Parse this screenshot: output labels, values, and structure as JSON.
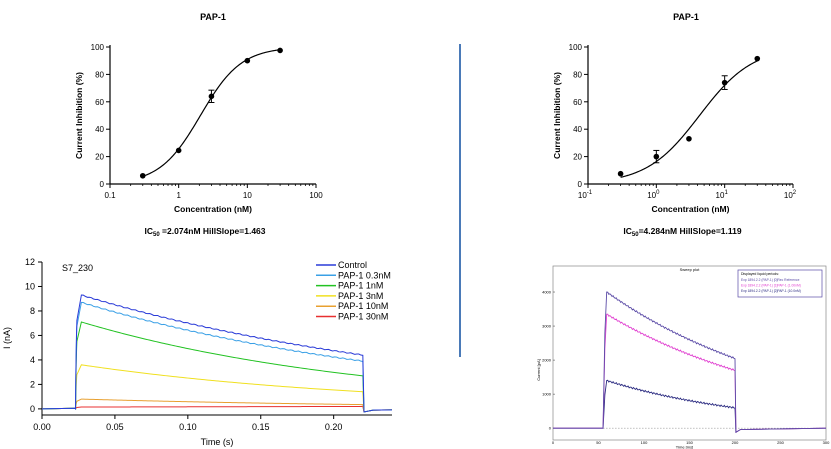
{
  "chart_data": [
    {
      "type": "scatter",
      "title": "PAP-1",
      "xlabel": "Concentration (nM)",
      "ylabel": "Current Inhibition (%)",
      "xscale": "log",
      "xlim": [
        0.1,
        100
      ],
      "ylim": [
        0,
        100
      ],
      "xticks": [
        "0.1",
        "1",
        "10",
        "100"
      ],
      "yticks": [
        "0",
        "20",
        "40",
        "60",
        "80",
        "100"
      ],
      "points": [
        {
          "x": 0.3,
          "y": 6,
          "err": 0
        },
        {
          "x": 1,
          "y": 24.5,
          "err": 0
        },
        {
          "x": 3,
          "y": 64,
          "err": 4.5
        },
        {
          "x": 10,
          "y": 90,
          "err": 0
        },
        {
          "x": 30,
          "y": 97.5,
          "err": 0
        }
      ],
      "fit": {
        "ic50": 2.074,
        "hill": 1.463
      },
      "caption": {
        "pre": "IC",
        "sub": "50",
        "post": " =2.074nM  HillSlope=1.463"
      }
    },
    {
      "type": "scatter",
      "title": "PAP-1",
      "xlabel": "Concentration (nM)",
      "ylabel": "Current Inhibition (%)",
      "xscale": "log",
      "xlim": [
        0.1,
        100
      ],
      "ylim": [
        0,
        100
      ],
      "xticks": [
        {
          "base": "10",
          "exp": "-1"
        },
        {
          "base": "10",
          "exp": "0"
        },
        {
          "base": "10",
          "exp": "1"
        },
        {
          "base": "10",
          "exp": "2"
        }
      ],
      "yticks": [
        "0",
        "20",
        "40",
        "60",
        "80",
        "100"
      ],
      "points": [
        {
          "x": 0.3,
          "y": 7.5,
          "err": 0
        },
        {
          "x": 1,
          "y": 20,
          "err": 4.5
        },
        {
          "x": 3,
          "y": 33,
          "err": 0
        },
        {
          "x": 10,
          "y": 74,
          "err": 5
        },
        {
          "x": 30,
          "y": 91.5,
          "err": 0
        }
      ],
      "fit": {
        "ic50": 4.284,
        "hill": 1.119
      },
      "caption": {
        "pre": "IC",
        "sub": "50",
        "post": "=4.284nM  HillSlope=1.119"
      }
    },
    {
      "type": "line",
      "title": "S7_230",
      "xlabel": "Time (s)",
      "ylabel": "I (nA)",
      "xlim": [
        0,
        0.24
      ],
      "ylim": [
        -0.5,
        12
      ],
      "xticks": [
        "0.00",
        "0.05",
        "0.10",
        "0.15",
        "0.20"
      ],
      "yticks": [
        "0",
        "2",
        "4",
        "6",
        "8",
        "10",
        "12"
      ],
      "pulse": {
        "start": 0.023,
        "end": 0.22
      },
      "legend_position": "top-right",
      "series": [
        {
          "name": "Control",
          "color": "#2a3bd8",
          "peak": 9.3,
          "end": 4.4
        },
        {
          "name": "PAP-1 0.3nM",
          "color": "#3aa0e6",
          "peak": 8.7,
          "end": 3.9
        },
        {
          "name": "PAP-1 1nM",
          "color": "#22c222",
          "peak": 7.1,
          "end": 2.7
        },
        {
          "name": "PAP-1 3nM",
          "color": "#f0e020",
          "peak": 3.6,
          "end": 1.4
        },
        {
          "name": "PAP-1 10nM",
          "color": "#e8a030",
          "peak": 0.8,
          "end": 0.35
        },
        {
          "name": "PAP-1 30nM",
          "color": "#e83030",
          "peak": 0.15,
          "end": 0.2
        }
      ]
    },
    {
      "type": "line",
      "title": "Sweep plot",
      "xlabel": "Time [ms]",
      "ylabel": "Current [pA]",
      "xlim": [
        0,
        300
      ],
      "ylim": [
        -200,
        4500
      ],
      "xticks": [
        "0",
        "50",
        "100",
        "150",
        "200",
        "250",
        "300"
      ],
      "yticks": [
        "0",
        "1000",
        "2000",
        "3000",
        "4000"
      ],
      "pulse": {
        "start": 55,
        "end": 200
      },
      "legend_title": "Displayed liquid periods:",
      "legend_position": "top-right",
      "series": [
        {
          "name": "Exp 1894.2.2 (PAP-1) [0]Rec Reference",
          "color": "#5a4aa6",
          "peak": 4000,
          "end": 2050
        },
        {
          "name": "Exp 1894.2.2 (PAP-1) [1]PAP-1 (1.00nM)",
          "color": "#e040d0",
          "peak": 3350,
          "end": 1700
        },
        {
          "name": "Exp 1894.2.2 (PAP-1) [2]PAP-1 (10.0nM)",
          "color": "#2a2a80",
          "peak": 1400,
          "end": 600
        }
      ]
    }
  ],
  "divider_color": "#4a7ab8"
}
